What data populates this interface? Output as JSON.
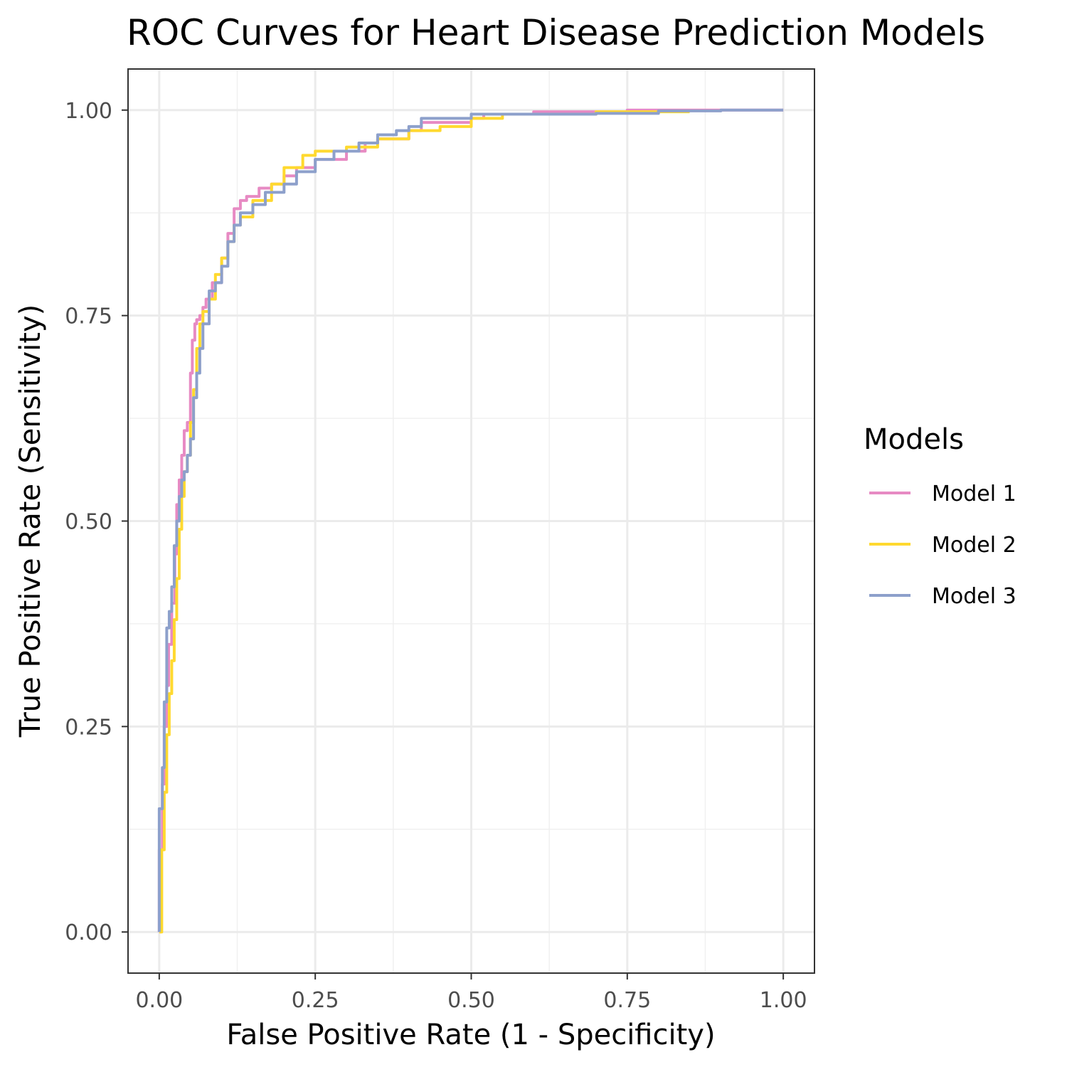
{
  "chart_data": {
    "type": "line",
    "title": "ROC Curves for Heart Disease Prediction Models",
    "xlabel": "False Positive Rate (1 - Specificity)",
    "ylabel": "True Positive Rate (Sensitivity)",
    "xlim": [
      -0.05,
      1.05
    ],
    "ylim": [
      -0.05,
      1.05
    ],
    "xticks": [
      0,
      0.25,
      0.5,
      0.75,
      1
    ],
    "yticks": [
      0,
      0.25,
      0.5,
      0.75,
      1
    ],
    "xtick_labels": [
      "0.00",
      "0.25",
      "0.50",
      "0.75",
      "1.00"
    ],
    "ytick_labels": [
      "0.00",
      "0.25",
      "0.50",
      "0.75",
      "1.00"
    ],
    "grid": true,
    "legend": {
      "title": "Models",
      "position": "right"
    },
    "series": [
      {
        "name": "Model 1",
        "color": "#E78AC3",
        "x": [
          0,
          0,
          0.005,
          0.008,
          0.012,
          0.015,
          0.02,
          0.025,
          0.028,
          0.032,
          0.036,
          0.04,
          0.045,
          0.05,
          0.053,
          0.057,
          0.06,
          0.065,
          0.07,
          0.075,
          0.085,
          0.1,
          0.11,
          0.12,
          0.13,
          0.14,
          0.16,
          0.18,
          0.2,
          0.22,
          0.25,
          0.3,
          0.33,
          0.35,
          0.4,
          0.42,
          0.5,
          0.52,
          0.6,
          0.75,
          0.85,
          1
        ],
        "y": [
          0,
          0.1,
          0.18,
          0.25,
          0.3,
          0.35,
          0.4,
          0.46,
          0.52,
          0.55,
          0.58,
          0.61,
          0.62,
          0.68,
          0.72,
          0.74,
          0.745,
          0.75,
          0.76,
          0.77,
          0.79,
          0.82,
          0.85,
          0.88,
          0.89,
          0.895,
          0.905,
          0.91,
          0.92,
          0.93,
          0.94,
          0.95,
          0.96,
          0.965,
          0.975,
          0.985,
          0.99,
          0.995,
          0.998,
          1,
          1,
          1
        ]
      },
      {
        "name": "Model 2",
        "color": "#FFD92F",
        "x": [
          0,
          0.004,
          0.008,
          0.012,
          0.016,
          0.02,
          0.024,
          0.028,
          0.032,
          0.036,
          0.04,
          0.045,
          0.05,
          0.055,
          0.06,
          0.065,
          0.07,
          0.08,
          0.09,
          0.1,
          0.11,
          0.12,
          0.13,
          0.15,
          0.18,
          0.2,
          0.23,
          0.25,
          0.3,
          0.35,
          0.4,
          0.45,
          0.5,
          0.55,
          0.7,
          0.85
        ],
        "y": [
          0,
          0.1,
          0.17,
          0.24,
          0.29,
          0.33,
          0.38,
          0.43,
          0.49,
          0.53,
          0.56,
          0.58,
          0.62,
          0.66,
          0.71,
          0.74,
          0.755,
          0.77,
          0.8,
          0.82,
          0.84,
          0.86,
          0.87,
          0.89,
          0.91,
          0.93,
          0.945,
          0.95,
          0.955,
          0.965,
          0.975,
          0.98,
          0.99,
          0.995,
          0.998,
          0.998
        ]
      },
      {
        "name": "Model 3",
        "color": "#8DA0CB",
        "x": [
          0,
          0,
          0.005,
          0.008,
          0.012,
          0.016,
          0.02,
          0.024,
          0.028,
          0.032,
          0.036,
          0.04,
          0.045,
          0.05,
          0.055,
          0.06,
          0.065,
          0.07,
          0.08,
          0.09,
          0.1,
          0.11,
          0.12,
          0.13,
          0.15,
          0.17,
          0.2,
          0.22,
          0.25,
          0.28,
          0.32,
          0.35,
          0.38,
          0.4,
          0.42,
          0.5,
          0.6,
          0.7,
          0.8,
          0.9,
          1
        ],
        "y": [
          0,
          0.15,
          0.2,
          0.28,
          0.37,
          0.39,
          0.42,
          0.47,
          0.5,
          0.53,
          0.55,
          0.56,
          0.58,
          0.6,
          0.65,
          0.68,
          0.71,
          0.74,
          0.78,
          0.79,
          0.81,
          0.84,
          0.86,
          0.875,
          0.885,
          0.9,
          0.91,
          0.925,
          0.94,
          0.95,
          0.96,
          0.97,
          0.975,
          0.98,
          0.99,
          0.995,
          0.995,
          0.996,
          0.999,
          1,
          1
        ]
      }
    ]
  }
}
